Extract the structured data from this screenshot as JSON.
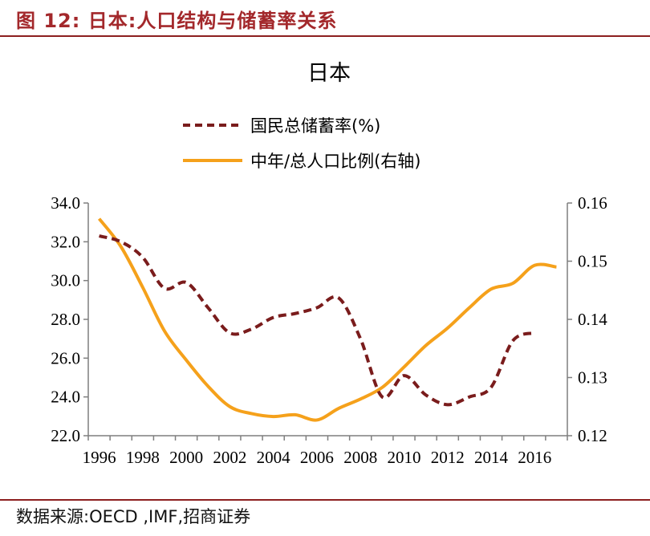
{
  "figure_label": "图 12:",
  "figure_title": "日本:人口结构与储蓄率关系",
  "source": "数据来源:OECD ,IMF,招商证券",
  "colors": {
    "header": "#a3282b",
    "savings_series": "#7a1c1c",
    "ratio_series": "#f5a11b"
  },
  "chart_data": {
    "type": "line",
    "title": "日本",
    "legend_placement": "top-center",
    "grid": false,
    "x_ticks": [
      "1996",
      "1998",
      "2000",
      "2002",
      "2004",
      "2006",
      "2008",
      "2010",
      "2012",
      "2014",
      "2016"
    ],
    "xlim": [
      1995.5,
      2017.5
    ],
    "y_left": {
      "ylim": [
        22,
        34
      ],
      "ticks": [
        "22.0",
        "24.0",
        "26.0",
        "28.0",
        "30.0",
        "32.0",
        "34.0"
      ]
    },
    "y_right": {
      "ylim": [
        0.12,
        0.16
      ],
      "ticks": [
        "0.12",
        "0.13",
        "0.14",
        "0.15",
        "0.16"
      ]
    },
    "series": [
      {
        "name": "国民总储蓄率(%)",
        "axis": "left",
        "style": "dashed",
        "x": [
          1996,
          1997,
          1998,
          1999,
          2000,
          2001,
          2002,
          2003,
          2004,
          2005,
          2006,
          2007,
          2008,
          2009,
          2010,
          2011,
          2012,
          2013,
          2014,
          2015,
          2016
        ],
        "y": [
          32.3,
          32.0,
          31.2,
          29.6,
          29.9,
          28.6,
          27.3,
          27.5,
          28.1,
          28.3,
          28.6,
          29.1,
          27.0,
          24.0,
          25.1,
          24.1,
          23.6,
          24.0,
          24.5,
          26.9,
          27.3
        ]
      },
      {
        "name": "中年/总人口比例(右轴)",
        "axis": "right",
        "style": "solid",
        "x": [
          1996,
          1997,
          1998,
          1999,
          2000,
          2001,
          2002,
          2003,
          2004,
          2005,
          2006,
          2007,
          2008,
          2009,
          2010,
          2011,
          2012,
          2013,
          2014,
          2015,
          2016,
          2017
        ],
        "y": [
          0.1573,
          0.1525,
          0.1455,
          0.138,
          0.133,
          0.1285,
          0.125,
          0.1238,
          0.1233,
          0.1236,
          0.1227,
          0.1247,
          0.1263,
          0.1283,
          0.1318,
          0.1355,
          0.1385,
          0.142,
          0.1452,
          0.1462,
          0.1493,
          0.149
        ]
      }
    ]
  }
}
